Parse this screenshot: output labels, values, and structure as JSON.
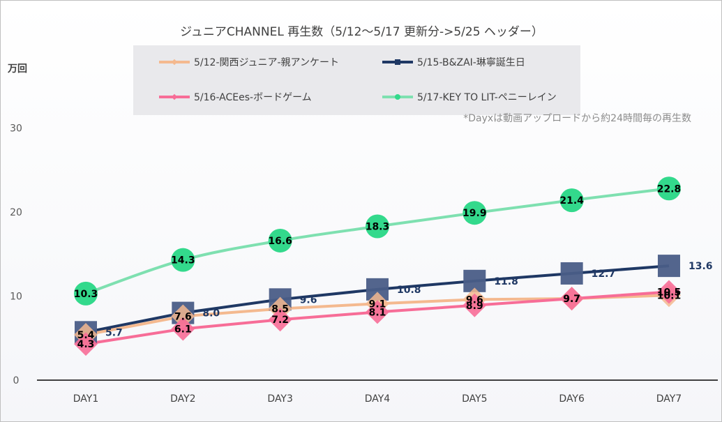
{
  "chart_data": {
    "type": "line",
    "title": "ジュニアCHANNEL 再生数（5/12～5/17 更新分->5/25 ヘッダー）",
    "ylabel": "万回",
    "xlabel": "",
    "note": "*Dayxは動画アップロードから約24時間毎の再生数",
    "categories": [
      "DAY1",
      "DAY2",
      "DAY3",
      "DAY4",
      "DAY5",
      "DAY6",
      "DAY7"
    ],
    "ylim": [
      0,
      30
    ],
    "yticks": [
      "0",
      "10",
      "20",
      "30"
    ],
    "grid": false,
    "legend_position": "top",
    "series": [
      {
        "name": "5/12-関西ジュニア-親アンケート",
        "values": [
          5.4,
          7.6,
          8.5,
          9.1,
          9.6,
          9.7,
          10.1
        ],
        "labels": [
          "5.4",
          "7.6",
          "8.5",
          "9.1",
          "9.6",
          "9.7",
          "10.1"
        ],
        "color": "#f4b98f",
        "marker": "diamond",
        "label_color": "#000000"
      },
      {
        "name": "5/15-B&ZAI-琳寧誕生日",
        "values": [
          5.7,
          8.0,
          9.6,
          10.8,
          11.8,
          12.7,
          13.6
        ],
        "labels": [
          "5.7",
          "8.0",
          "9.6",
          "10.8",
          "11.8",
          "12.7",
          "13.6"
        ],
        "color": "#1f3864",
        "marker_color": "#4a5d87",
        "marker": "square",
        "label_color": "#1f3864"
      },
      {
        "name": "5/16-ACEes-ボードゲーム",
        "values": [
          4.3,
          6.1,
          7.2,
          8.1,
          8.9,
          9.7,
          10.5
        ],
        "labels": [
          "4.3",
          "6.1",
          "7.2",
          "8.1",
          "8.9",
          "9.7",
          "10.5"
        ],
        "color": "#f76d97",
        "marker": "diamond",
        "label_color": "#000000"
      },
      {
        "name": "5/17-KEY TO LIT-ペニーレイン",
        "values": [
          10.3,
          14.3,
          16.6,
          18.3,
          19.9,
          21.4,
          22.8
        ],
        "labels": [
          "10.3",
          "14.3",
          "16.6",
          "18.3",
          "19.9",
          "21.4",
          "22.8"
        ],
        "color": "#7ee0b0",
        "marker_color": "#33d98c",
        "marker": "circle",
        "label_color": "#000000"
      }
    ]
  }
}
